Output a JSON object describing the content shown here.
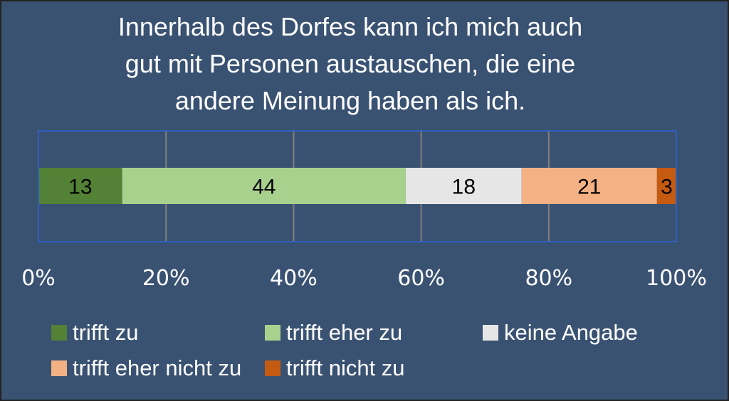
{
  "chart_data": {
    "type": "bar",
    "orientation": "horizontal-stacked-percent",
    "title_lines": [
      "Innerhalb des Dorfes kann ich mich auch",
      "gut mit Personen austauschen, die eine",
      "andere Meinung haben als ich."
    ],
    "xlim": [
      0,
      100
    ],
    "x_ticks": [
      "0%",
      "20%",
      "40%",
      "60%",
      "80%",
      "100%"
    ],
    "x_tick_values": [
      0,
      20,
      40,
      60,
      80,
      100
    ],
    "grid": true,
    "legend_position": "bottom",
    "series": [
      {
        "name": "trifft zu",
        "value": 13,
        "label": "13",
        "color": "#538135"
      },
      {
        "name": "trifft eher zu",
        "value": 44,
        "label": "44",
        "color": "#a9d18e"
      },
      {
        "name": "keine Angabe",
        "value": 18,
        "label": "18",
        "color": "#e7e6e6"
      },
      {
        "name": "trifft eher nicht zu",
        "value": 21,
        "label": "21",
        "color": "#f4b183"
      },
      {
        "name": "trifft nicht zu",
        "value": 3,
        "label": "3",
        "color": "#c55a11"
      }
    ]
  },
  "colors": {
    "background": "#3a5272",
    "plot_border": "#2f5fbf",
    "gridline": "#7f7f7f",
    "text": "#ffffff"
  }
}
